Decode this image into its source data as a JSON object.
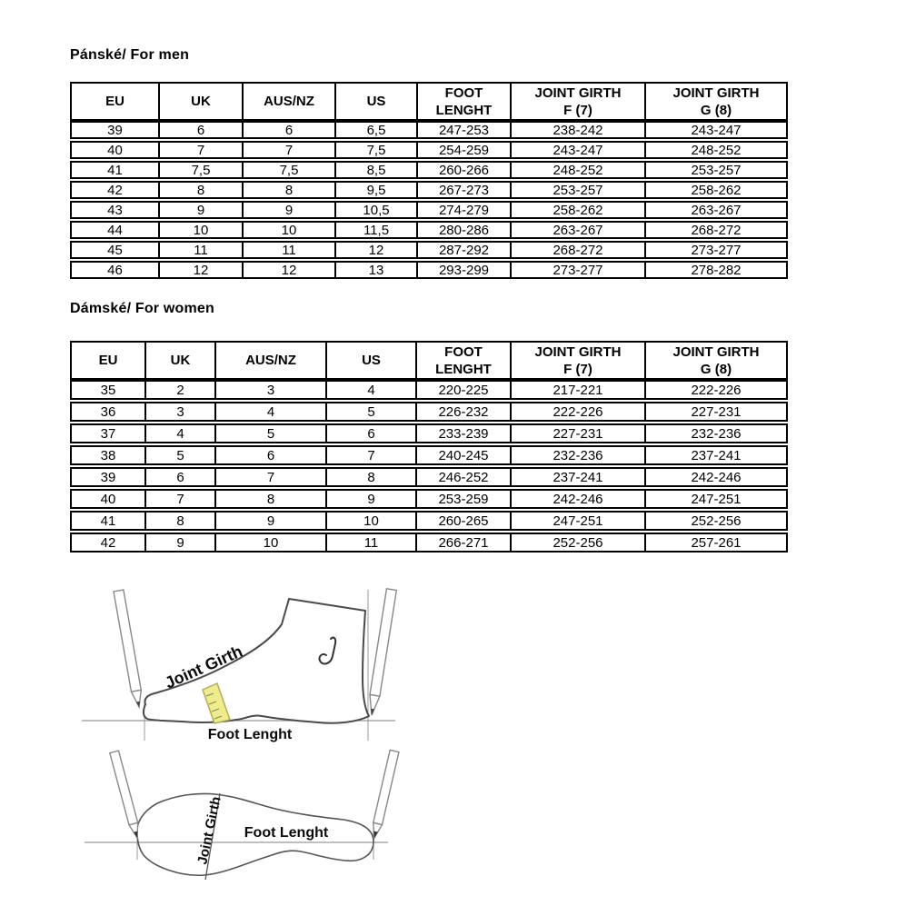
{
  "titles": {
    "men": "Pánské/ For men",
    "women": "Dámské/ For women"
  },
  "tables": {
    "men": {
      "headers": [
        [
          "EU"
        ],
        [
          "UK"
        ],
        [
          "AUS/NZ"
        ],
        [
          "US"
        ],
        [
          "FOOT",
          "LENGHT"
        ],
        [
          "JOINT GIRTH",
          "F (7)"
        ],
        [
          "JOINT GIRTH",
          "G (8)"
        ]
      ],
      "rows": [
        [
          "39",
          "6",
          "6",
          "6,5",
          "247-253",
          "238-242",
          "243-247"
        ],
        [
          "40",
          "7",
          "7",
          "7,5",
          "254-259",
          "243-247",
          "248-252"
        ],
        [
          "41",
          "7,5",
          "7,5",
          "8,5",
          "260-266",
          "248-252",
          "253-257"
        ],
        [
          "42",
          "8",
          "8",
          "9,5",
          "267-273",
          "253-257",
          "258-262"
        ],
        [
          "43",
          "9",
          "9",
          "10,5",
          "274-279",
          "258-262",
          "263-267"
        ],
        [
          "44",
          "10",
          "10",
          "11,5",
          "280-286",
          "263-267",
          "268-272"
        ],
        [
          "45",
          "11",
          "11",
          "12",
          "287-292",
          "268-272",
          "273-277"
        ],
        [
          "46",
          "12",
          "12",
          "13",
          "293-299",
          "273-277",
          "278-282"
        ]
      ]
    },
    "women": {
      "headers": [
        [
          "EU"
        ],
        [
          "UK"
        ],
        [
          "AUS/NZ"
        ],
        [
          "US"
        ],
        [
          "FOOT",
          "LENGHT"
        ],
        [
          "JOINT GIRTH",
          "F (7)"
        ],
        [
          "JOINT GIRTH",
          "G (8)"
        ]
      ],
      "rows": [
        [
          "35",
          "2",
          "3",
          "4",
          "220-225",
          "217-221",
          "222-226"
        ],
        [
          "36",
          "3",
          "4",
          "5",
          "226-232",
          "222-226",
          "227-231"
        ],
        [
          "37",
          "4",
          "5",
          "6",
          "233-239",
          "227-231",
          "232-236"
        ],
        [
          "38",
          "5",
          "6",
          "7",
          "240-245",
          "232-236",
          "237-241"
        ],
        [
          "39",
          "6",
          "7",
          "8",
          "246-252",
          "237-241",
          "242-246"
        ],
        [
          "40",
          "7",
          "8",
          "9",
          "253-259",
          "242-246",
          "247-251"
        ],
        [
          "41",
          "8",
          "9",
          "10",
          "260-265",
          "247-251",
          "252-256"
        ],
        [
          "42",
          "9",
          "10",
          "11",
          "266-271",
          "252-256",
          "257-261"
        ]
      ]
    }
  },
  "diagrams": {
    "side_view": {
      "joint_girth_label": "Joint Girth",
      "foot_length_label": "Foot Lenght"
    },
    "sole_view": {
      "joint_girth_label": "Joint Girth",
      "foot_length_label": "Foot Lenght"
    }
  },
  "colors": {
    "tape_yellow": "#eeec8f",
    "outline": "#4a4a4a",
    "guide_line": "#999999",
    "text": "#000000"
  }
}
